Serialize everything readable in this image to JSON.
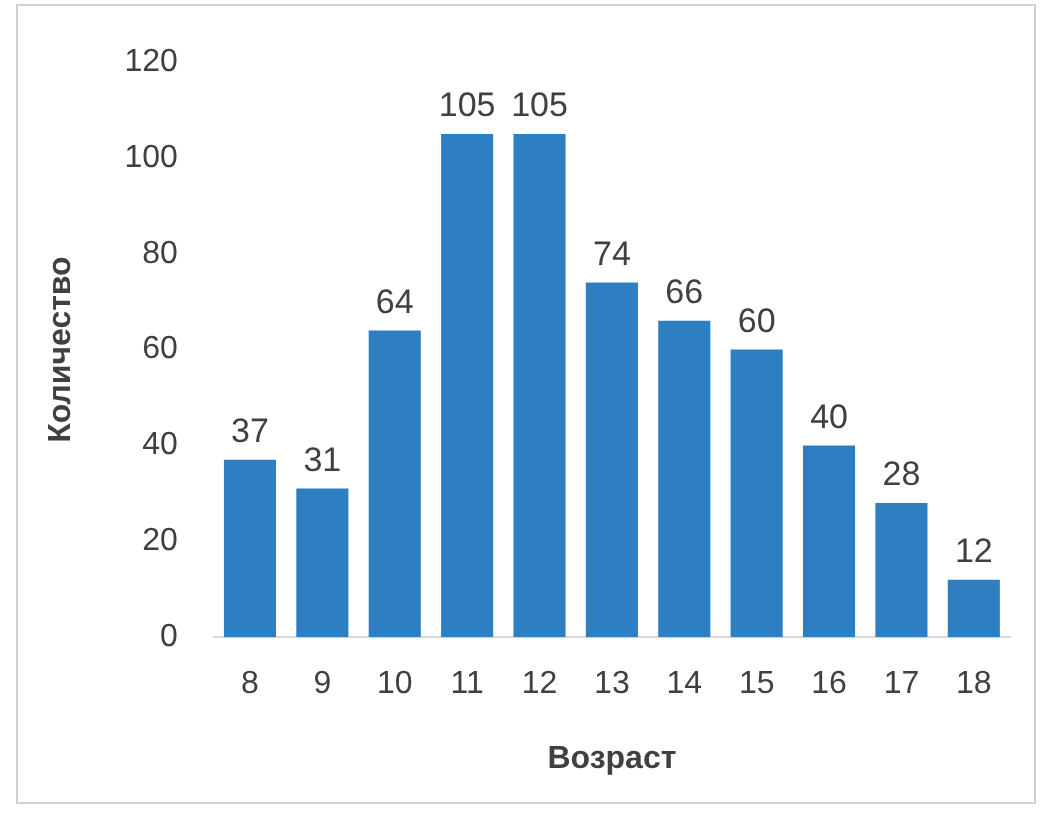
{
  "chart_data": {
    "type": "bar",
    "xlabel": "Возраст",
    "ylabel": "Количество",
    "categories": [
      "8",
      "9",
      "10",
      "11",
      "12",
      "13",
      "14",
      "15",
      "16",
      "17",
      "18"
    ],
    "values": [
      37,
      31,
      64,
      105,
      105,
      74,
      66,
      60,
      40,
      28,
      12
    ],
    "color": "#2e7fc2",
    "ylim": [
      0,
      120
    ],
    "yticks": [
      0,
      20,
      40,
      60,
      80,
      100,
      120
    ],
    "grid": false,
    "legend": false,
    "data_labels": true
  }
}
